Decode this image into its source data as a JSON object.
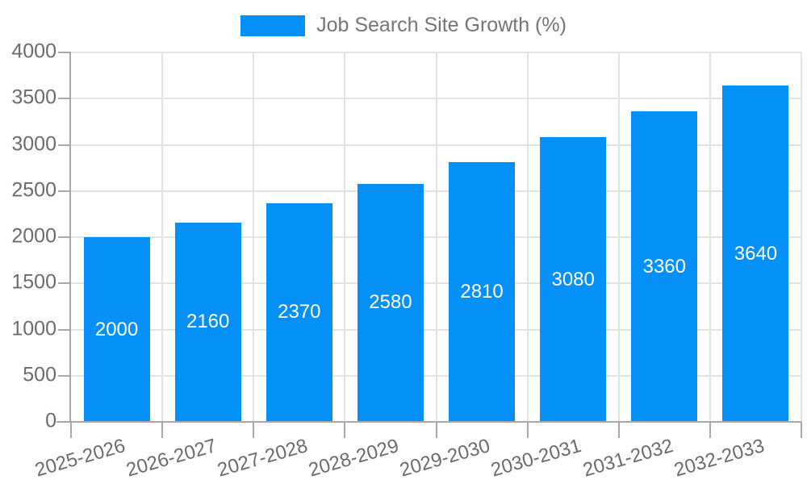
{
  "legend": {
    "label": "Job Search Site Growth (%)"
  },
  "chart_data": {
    "type": "bar",
    "title": "Job Search Site Growth (%)",
    "categories": [
      "2025-2026",
      "2026-2027",
      "2027-2028",
      "2028-2029",
      "2029-2030",
      "2030-2031",
      "2031-2032",
      "2032-2033"
    ],
    "values": [
      2000,
      2160,
      2370,
      2580,
      2810,
      3080,
      3360,
      3640
    ],
    "bar_labels": [
      "2000",
      "2160",
      "2370",
      "2580",
      "2810",
      "3080",
      "3360",
      "3640"
    ],
    "xlabel": "",
    "ylabel": "",
    "ylim": [
      0,
      4000
    ],
    "ytick_step": 500,
    "y_tick_labels": [
      "0",
      "500",
      "1000",
      "1500",
      "2000",
      "2500",
      "3000",
      "3500",
      "4000"
    ],
    "grid": true,
    "legend_position": "top-center",
    "x_labels_rotated": true
  },
  "colors": {
    "bar": "#0590F8",
    "bar_label": "#FFFFFF",
    "axis_label": "#6B6B6B",
    "legend_text": "#757575",
    "gridline": "#E2E2E2",
    "axis_line": "#A8A8A8"
  }
}
